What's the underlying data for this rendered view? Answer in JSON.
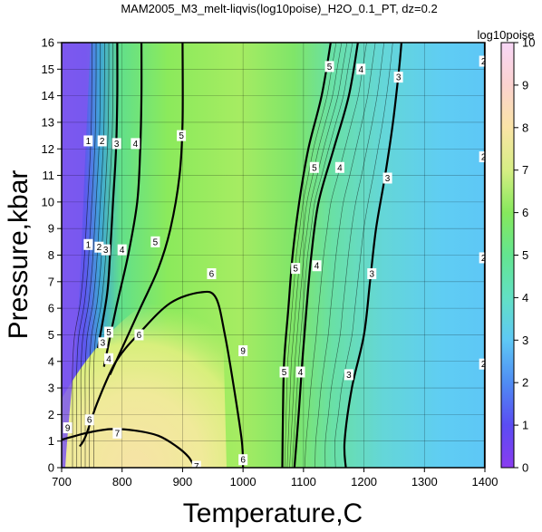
{
  "chart_data": {
    "type": "heatmap",
    "title": "MAM2005_M3_melt-liqvis(log10poise)_H2O_0.1_PT, dz=0.2",
    "xlabel": "Temperature,C",
    "ylabel": "Pressure,kbar",
    "xlim": [
      700,
      1400
    ],
    "ylim": [
      0,
      16
    ],
    "x_ticks": [
      "700",
      "800",
      "900",
      "1000",
      "1100",
      "1200",
      "1300",
      "1400"
    ],
    "y_ticks": [
      "0",
      "1",
      "2",
      "3",
      "4",
      "5",
      "6",
      "7",
      "8",
      "9",
      "10",
      "11",
      "12",
      "13",
      "14",
      "15",
      "16"
    ],
    "grid": true,
    "colorbar": {
      "title": "log10poise",
      "range": [
        0,
        10
      ],
      "ticks": [
        "0",
        "1",
        "2",
        "3",
        "4",
        "5",
        "6",
        "7",
        "8",
        "9",
        "10"
      ]
    },
    "contour_interval": 0.2,
    "labeled_contours": [
      {
        "level": "2",
        "points": [
          [
            1400,
            16
          ],
          [
            1400,
            0
          ]
        ]
      },
      {
        "level": "3",
        "points": [
          [
            1170,
            0
          ],
          [
            1168,
            1
          ],
          [
            1180,
            3
          ],
          [
            1200,
            5
          ],
          [
            1210,
            7
          ],
          [
            1220,
            9
          ],
          [
            1235,
            11
          ],
          [
            1248,
            13
          ],
          [
            1258,
            15
          ],
          [
            1262,
            16
          ]
        ]
      },
      {
        "level": "4",
        "points": [
          [
            1085,
            0
          ],
          [
            1092,
            2
          ],
          [
            1098,
            4
          ],
          [
            1105,
            6
          ],
          [
            1113,
            8
          ],
          [
            1125,
            10
          ],
          [
            1150,
            12
          ],
          [
            1175,
            14
          ],
          [
            1190,
            16
          ]
        ]
      },
      {
        "level": "5",
        "points": [
          [
            1065,
            0
          ],
          [
            1066,
            2
          ],
          [
            1068,
            4
          ],
          [
            1075,
            6
          ],
          [
            1082,
            8
          ],
          [
            1093,
            10
          ],
          [
            1108,
            12
          ],
          [
            1130,
            14
          ],
          [
            1145,
            16
          ]
        ]
      },
      {
        "level": "6",
        "points": [
          [
            1000,
            0
          ],
          [
            998,
            1
          ],
          [
            985,
            3
          ],
          [
            970,
            5
          ],
          [
            955,
            6.4
          ],
          [
            930,
            6.6
          ],
          [
            880,
            6.2
          ],
          [
            830,
            5.1
          ],
          [
            790,
            4.0
          ],
          [
            760,
            2.5
          ],
          [
            740,
            1.2
          ],
          [
            730,
            0.8
          ]
        ]
      },
      {
        "level": "7",
        "points": [
          [
            700,
            1.05
          ],
          [
            740,
            1.3
          ],
          [
            780,
            1.45
          ],
          [
            820,
            1.4
          ],
          [
            860,
            1.2
          ],
          [
            890,
            0.8
          ],
          [
            910,
            0.4
          ],
          [
            920,
            0
          ]
        ]
      },
      {
        "level": "5",
        "points": [
          [
            780,
            3.5
          ],
          [
            800,
            4.5
          ],
          [
            830,
            6
          ],
          [
            860,
            7.5
          ],
          [
            880,
            9
          ],
          [
            895,
            11
          ],
          [
            900,
            13
          ],
          [
            900,
            16
          ]
        ]
      },
      {
        "level": "4",
        "points": [
          [
            770,
            3.8
          ],
          [
            790,
            6
          ],
          [
            810,
            8
          ],
          [
            825,
            10
          ],
          [
            830,
            12
          ],
          [
            832,
            14
          ],
          [
            832,
            16
          ]
        ]
      },
      {
        "level": "3",
        "points": [
          [
            760,
            4.5
          ],
          [
            775,
            6.5
          ],
          [
            780,
            8
          ],
          [
            785,
            10
          ],
          [
            790,
            12
          ],
          [
            792,
            14
          ],
          [
            792,
            16
          ]
        ]
      }
    ],
    "contour_labels": [
      {
        "text": "5",
        "x": 1143,
        "y": 15.1
      },
      {
        "text": "4",
        "x": 1195,
        "y": 15.0
      },
      {
        "text": "3",
        "x": 1257,
        "y": 14.7
      },
      {
        "text": "2",
        "x": 1398,
        "y": 15.3
      },
      {
        "text": "5",
        "x": 1118,
        "y": 11.3
      },
      {
        "text": "4",
        "x": 1160,
        "y": 11.3
      },
      {
        "text": "3",
        "x": 1239,
        "y": 10.9
      },
      {
        "text": "2",
        "x": 1398,
        "y": 11.7
      },
      {
        "text": "5",
        "x": 1087,
        "y": 7.5
      },
      {
        "text": "4",
        "x": 1122,
        "y": 7.6
      },
      {
        "text": "3",
        "x": 1213,
        "y": 7.3
      },
      {
        "text": "2",
        "x": 1398,
        "y": 7.9
      },
      {
        "text": "5",
        "x": 1068,
        "y": 3.6
      },
      {
        "text": "4",
        "x": 1095,
        "y": 3.6
      },
      {
        "text": "3",
        "x": 1175,
        "y": 3.5
      },
      {
        "text": "2",
        "x": 1398,
        "y": 3.9
      },
      {
        "text": "9",
        "x": 1000,
        "y": 4.4
      },
      {
        "text": "6",
        "x": 1000,
        "y": 0.3
      },
      {
        "text": "7",
        "x": 923,
        "y": 0.05
      },
      {
        "text": "7",
        "x": 792,
        "y": 1.3
      },
      {
        "text": "6",
        "x": 746,
        "y": 1.8
      },
      {
        "text": "6",
        "x": 948,
        "y": 7.3
      },
      {
        "text": "6",
        "x": 828,
        "y": 5.0
      },
      {
        "text": "5",
        "x": 778,
        "y": 5.1
      },
      {
        "text": "5",
        "x": 855,
        "y": 8.5
      },
      {
        "text": "5",
        "x": 898,
        "y": 12.5
      },
      {
        "text": "4",
        "x": 778,
        "y": 4.1
      },
      {
        "text": "4",
        "x": 800,
        "y": 8.2
      },
      {
        "text": "4",
        "x": 822,
        "y": 12.2
      },
      {
        "text": "3",
        "x": 773,
        "y": 8.2
      },
      {
        "text": "3",
        "x": 791,
        "y": 12.2
      },
      {
        "text": "3",
        "x": 768,
        "y": 4.7
      },
      {
        "text": "9",
        "x": 710,
        "y": 1.5
      },
      {
        "text": "1",
        "x": 744,
        "y": 12.3
      },
      {
        "text": "2",
        "x": 767,
        "y": 12.3
      },
      {
        "text": "1",
        "x": 744,
        "y": 8.4
      },
      {
        "text": "2",
        "x": 762,
        "y": 8.3
      }
    ]
  }
}
